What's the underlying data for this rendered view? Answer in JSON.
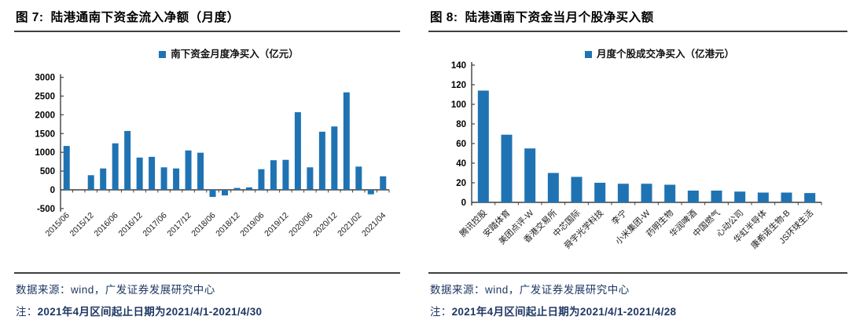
{
  "colors": {
    "bar": "#1F73B3",
    "navy": "#1F3864",
    "axis": "#404040"
  },
  "chart_data": [
    {
      "type": "bar",
      "fig_label": "图 7:",
      "title": "陆港通南下资金流入净额（月度）",
      "legend": "南下资金月度净买入（亿元）",
      "ylabel": "亿元",
      "ylim": [
        -500,
        3000
      ],
      "yticks": [
        3000,
        2500,
        2000,
        1500,
        1000,
        500,
        0,
        -500
      ],
      "grid": false,
      "legend_position": "top",
      "values": [
        1170,
        0,
        390,
        570,
        1240,
        1570,
        860,
        880,
        600,
        570,
        1050,
        990,
        -190,
        -150,
        50,
        65,
        550,
        790,
        800,
        2070,
        600,
        1550,
        1690,
        2600,
        620,
        -120,
        360
      ],
      "x_label_positions": [
        {
          "i": 0,
          "t": "2015/06"
        },
        {
          "i": 2,
          "t": "2015/12"
        },
        {
          "i": 4,
          "t": "2016/06"
        },
        {
          "i": 6,
          "t": "2016/12"
        },
        {
          "i": 8,
          "t": "2017/06"
        },
        {
          "i": 10,
          "t": "2017/12"
        },
        {
          "i": 12,
          "t": "2018/06"
        },
        {
          "i": 14,
          "t": "2018/12"
        },
        {
          "i": 16,
          "t": "2019/06"
        },
        {
          "i": 18,
          "t": "2019/12"
        },
        {
          "i": 20,
          "t": "2020/06"
        },
        {
          "i": 22,
          "t": "2020/12"
        },
        {
          "i": 24,
          "t": "2021/02"
        },
        {
          "i": 26,
          "t": "2021/04"
        }
      ],
      "source": "数据来源：wind，广发证券发展研究中心",
      "note_prefix": "注：",
      "note_body": "2021年4月区间起止日期为2021/4/1-2021/4/30"
    },
    {
      "type": "bar",
      "fig_label": "图 8:",
      "title": "陆港通南下资金当月个股净买入额",
      "legend": "月度个股成交净买入（亿港元）",
      "ylabel": "亿港元",
      "ylim": [
        0,
        140
      ],
      "yticks": [
        140,
        120,
        100,
        80,
        60,
        40,
        20,
        0
      ],
      "grid": false,
      "legend_position": "top",
      "categories": [
        "腾讯控股",
        "安踏体育",
        "美团点评-W",
        "香港交易所",
        "中芯国际",
        "舜宇光学科技",
        "李宁",
        "小米集团-W",
        "药明生物",
        "华润啤酒",
        "中国燃气",
        "心动公司",
        "华虹半导体",
        "康希诺生物-B",
        "JS环球生活"
      ],
      "values": [
        114,
        69,
        55,
        30,
        26,
        20,
        19,
        19,
        18,
        12,
        12,
        11,
        10,
        10,
        9.5
      ],
      "source": "数据来源：wind，广发证券发展研究中心",
      "note_prefix": "注：",
      "note_body": "2021年4月区间起止日期为2021/4/1-2021/4/28"
    }
  ]
}
